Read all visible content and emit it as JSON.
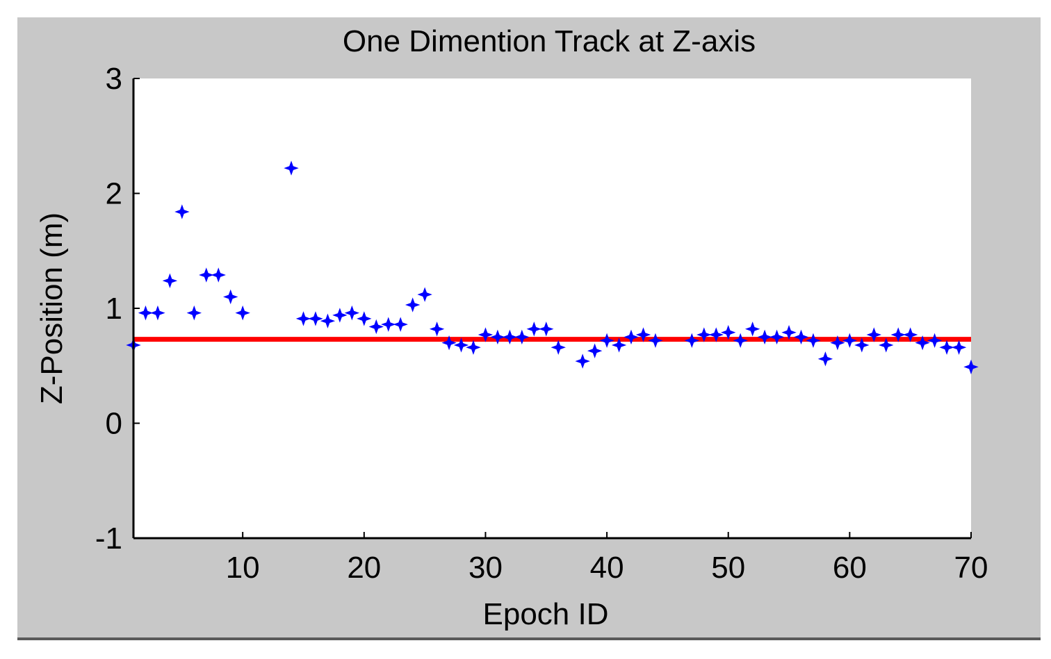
{
  "chart_data": {
    "type": "scatter",
    "title": "One Dimention Track at Z-axis",
    "xlabel": "Epoch ID",
    "ylabel": "Z-Position (m)",
    "xlim": [
      1,
      70
    ],
    "ylim": [
      -1,
      3
    ],
    "xticks": [
      10,
      20,
      30,
      40,
      50,
      60,
      70
    ],
    "yticks": [
      -1,
      0,
      1,
      2,
      3
    ],
    "grid": false,
    "legend": "none",
    "colors": {
      "figure_background": "#c8c8c8",
      "axes_background": "#ffffff",
      "series": "#0000ff",
      "reference_line": "#ff0000"
    },
    "series": [
      {
        "marker": "star",
        "x": [
          1,
          2,
          3,
          4,
          5,
          6,
          7,
          8,
          9,
          10,
          14,
          15,
          16,
          17,
          18,
          19,
          20,
          21,
          22,
          23,
          24,
          25,
          26,
          27,
          28,
          29,
          30,
          31,
          32,
          33,
          34,
          35,
          36,
          38,
          39,
          40,
          41,
          42,
          43,
          44,
          47,
          48,
          49,
          50,
          51,
          52,
          53,
          54,
          55,
          56,
          57,
          58,
          59,
          60,
          61,
          62,
          63,
          64,
          65,
          66,
          67,
          68,
          69,
          70
        ],
        "y": [
          0.68,
          0.96,
          0.96,
          1.24,
          1.84,
          0.96,
          1.29,
          1.29,
          1.1,
          0.96,
          2.22,
          0.91,
          0.91,
          0.89,
          0.94,
          0.96,
          0.91,
          0.84,
          0.86,
          0.86,
          1.03,
          1.12,
          0.82,
          0.7,
          0.68,
          0.66,
          0.77,
          0.75,
          0.75,
          0.75,
          0.82,
          0.82,
          0.66,
          0.54,
          0.63,
          0.72,
          0.68,
          0.75,
          0.77,
          0.72,
          0.72,
          0.77,
          0.77,
          0.79,
          0.72,
          0.82,
          0.75,
          0.75,
          0.79,
          0.75,
          0.72,
          0.56,
          0.7,
          0.72,
          0.68,
          0.77,
          0.68,
          0.77,
          0.77,
          0.7,
          0.72,
          0.66,
          0.66,
          0.49
        ]
      }
    ],
    "reference_line": {
      "type": "horizontal",
      "y": 0.73
    }
  }
}
